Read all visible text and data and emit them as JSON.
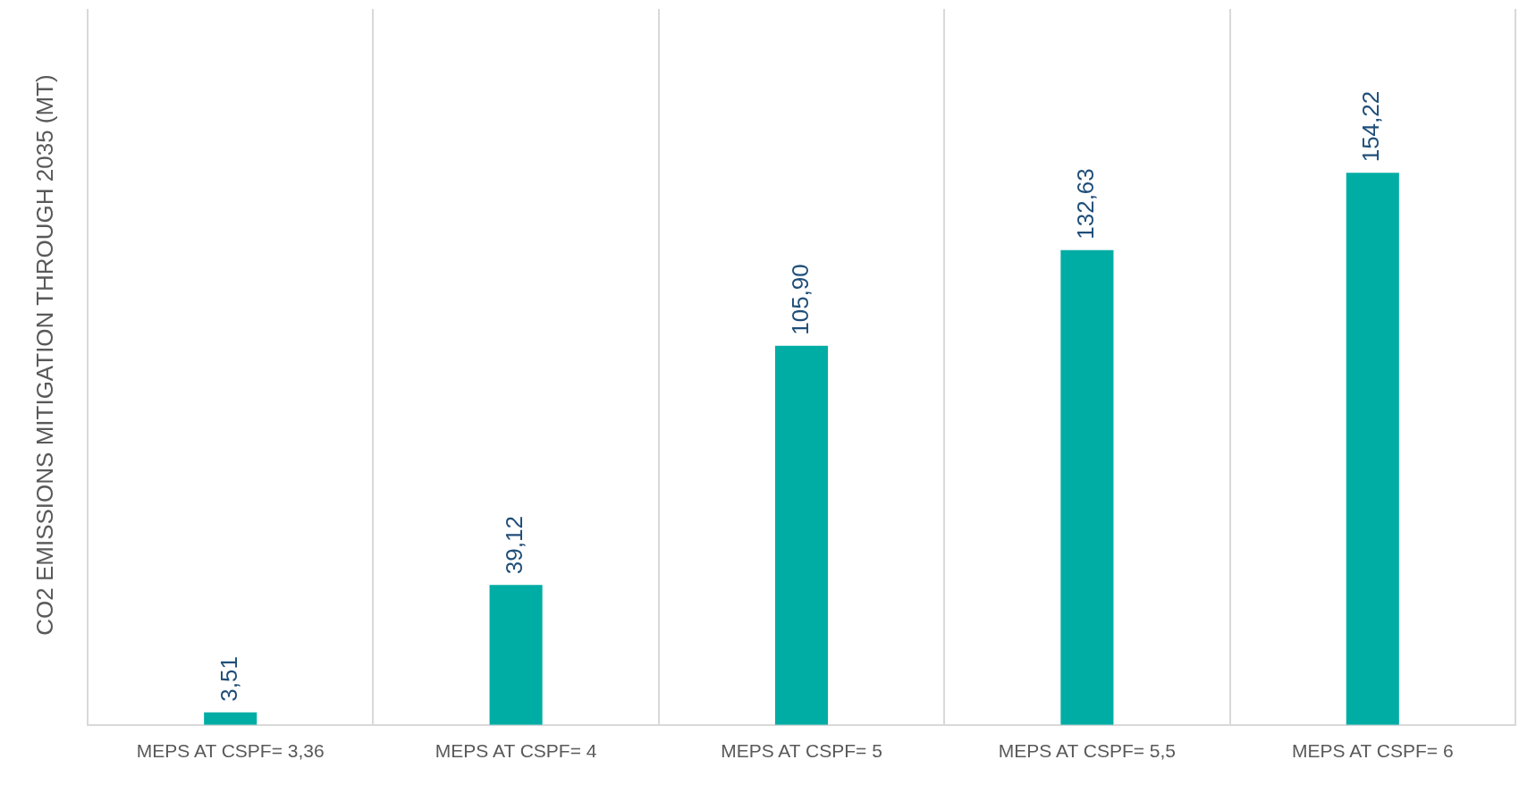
{
  "chart_data": {
    "type": "bar",
    "ylabel": "CO2 EMISSIONS MITIGATION THROUGH 2035 (MT)",
    "categories": [
      "MEPS AT CSPF= 3,36",
      "MEPS AT CSPF= 4",
      "MEPS AT CSPF= 5",
      "MEPS AT CSPF= 5,5",
      "MEPS AT CSPF= 6"
    ],
    "values": [
      3.51,
      39.12,
      105.9,
      132.63,
      154.22
    ],
    "value_labels": [
      "3,51",
      "39,12",
      "105,90",
      "132,63",
      "154,22"
    ],
    "color": "#00ada4",
    "ylim": [
      0,
      200
    ],
    "grid": "x",
    "legend": false
  }
}
